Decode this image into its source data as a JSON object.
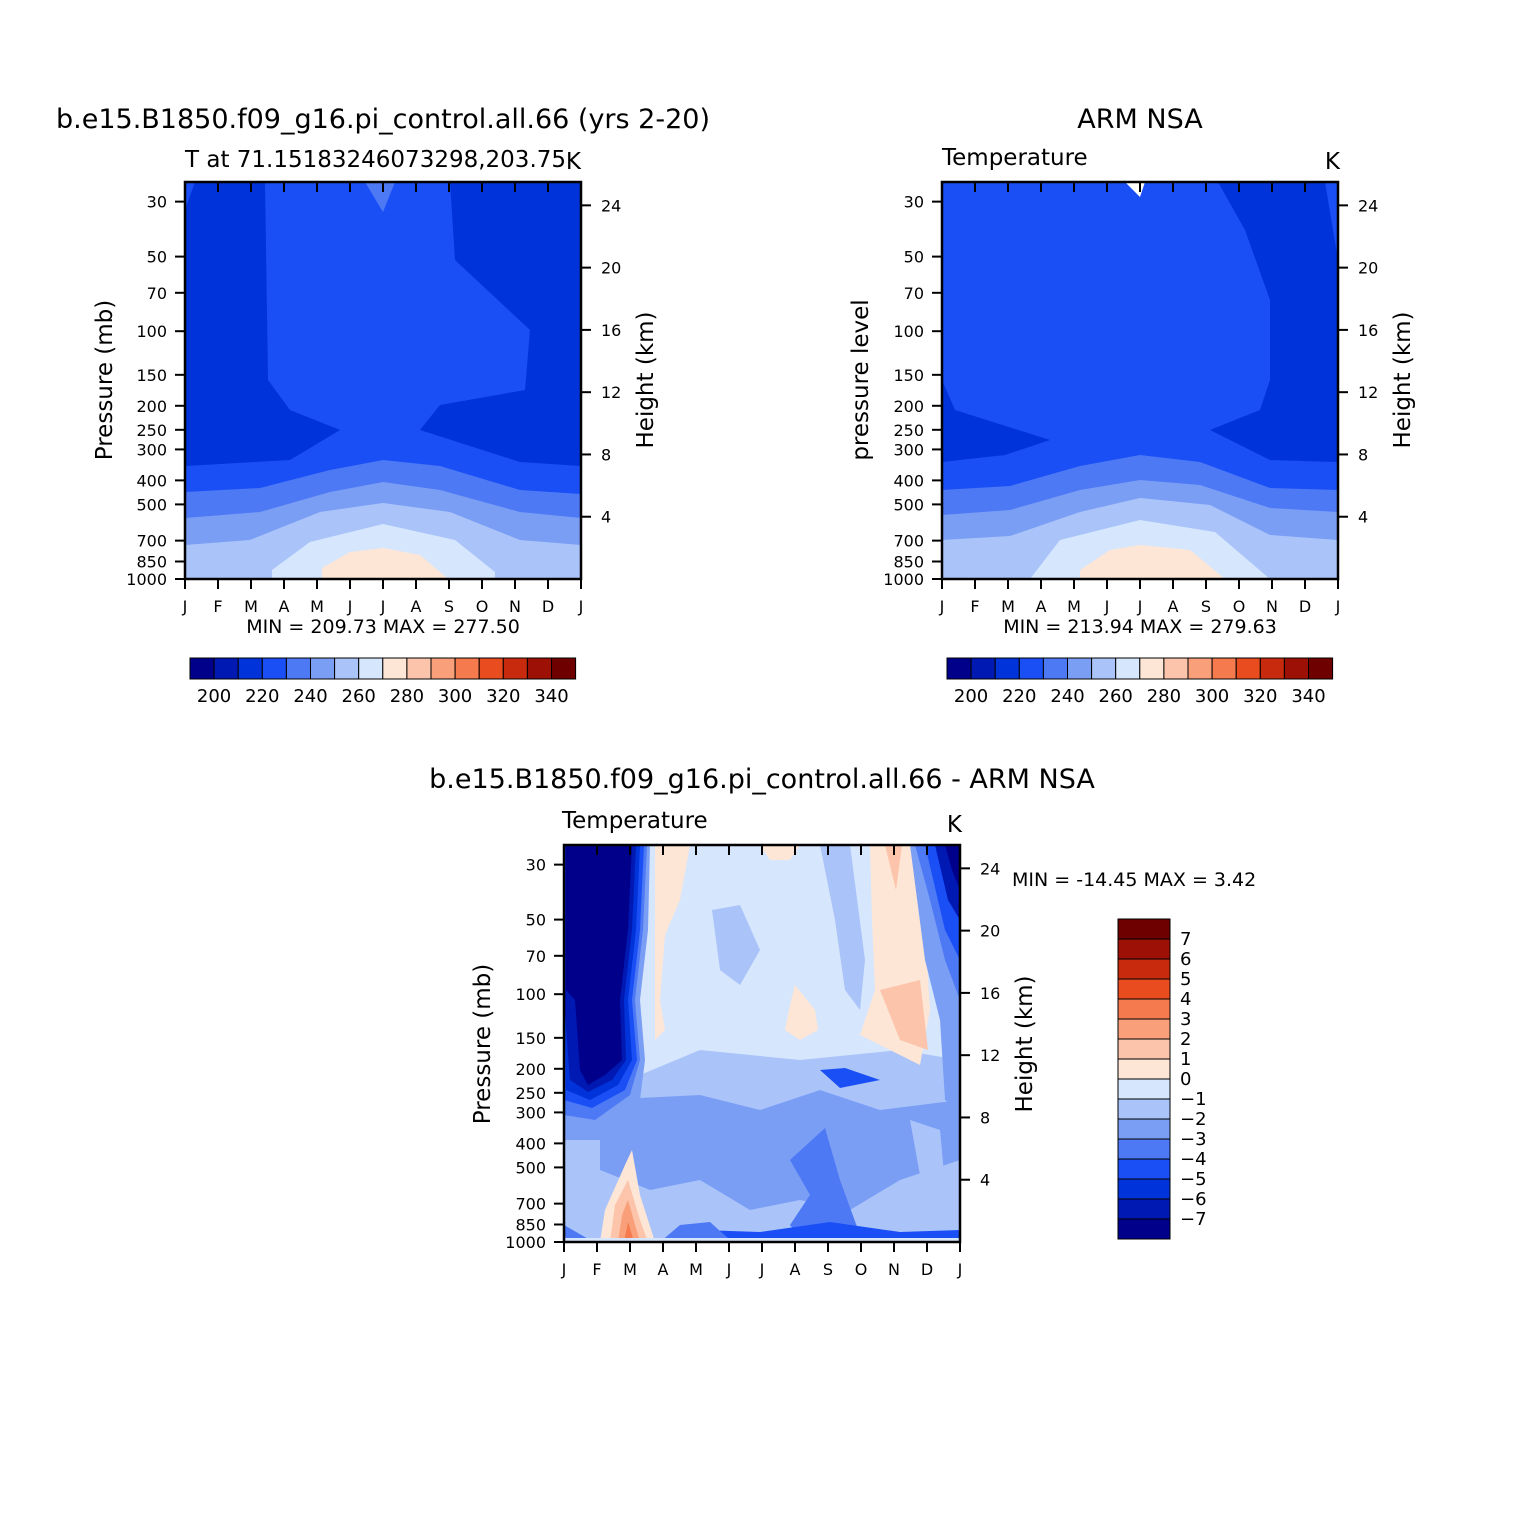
{
  "chart_data": [
    {
      "type": "heatmap",
      "title": "b.e15.B1850.f09_g16.pi_control.all.66 (yrs 2-20)",
      "subtitle_left": "T at 71.15183246073298,203.75",
      "units": "K",
      "ylabel": "Pressure (mb)",
      "ylabel_right": "Height (km)",
      "x_ticks": [
        "J",
        "F",
        "M",
        "A",
        "M",
        "J",
        "J",
        "A",
        "S",
        "O",
        "N",
        "D",
        "J"
      ],
      "y_ticks": [
        "30",
        "50",
        "70",
        "100",
        "150",
        "200",
        "250",
        "300",
        "400",
        "500",
        "700",
        "850",
        "1000"
      ],
      "height_ticks": [
        "24",
        "20",
        "16",
        "12",
        "8",
        "4"
      ],
      "stats": "MIN = 209.73 MAX = 277.50",
      "colorbar_labels": [
        "200",
        "220",
        "240",
        "260",
        "280",
        "300",
        "320",
        "340"
      ]
    },
    {
      "type": "heatmap",
      "title": "ARM NSA",
      "subtitle_left": "Temperature",
      "units": "K",
      "ylabel": "pressure level",
      "ylabel_right": "Height (km)",
      "x_ticks": [
        "J",
        "F",
        "M",
        "A",
        "M",
        "J",
        "J",
        "A",
        "S",
        "O",
        "N",
        "D",
        "J"
      ],
      "y_ticks": [
        "30",
        "50",
        "70",
        "100",
        "150",
        "200",
        "250",
        "300",
        "400",
        "500",
        "700",
        "850",
        "1000"
      ],
      "height_ticks": [
        "24",
        "20",
        "16",
        "12",
        "8",
        "4"
      ],
      "stats": "MIN = 213.94 MAX = 279.63",
      "colorbar_labels": [
        "200",
        "220",
        "240",
        "260",
        "280",
        "300",
        "320",
        "340"
      ]
    },
    {
      "type": "heatmap",
      "title": "b.e15.B1850.f09_g16.pi_control.all.66 - ARM NSA",
      "subtitle_left": "Temperature",
      "units": "K",
      "ylabel": "Pressure (mb)",
      "ylabel_right": "Height (km)",
      "x_ticks": [
        "J",
        "F",
        "M",
        "A",
        "M",
        "J",
        "J",
        "A",
        "S",
        "O",
        "N",
        "D",
        "J"
      ],
      "y_ticks": [
        "30",
        "50",
        "70",
        "100",
        "150",
        "200",
        "250",
        "300",
        "400",
        "500",
        "700",
        "850",
        "1000"
      ],
      "height_ticks": [
        "24",
        "20",
        "16",
        "12",
        "8",
        "4"
      ],
      "stats": "MIN = -14.45 MAX =    3.42",
      "colorbar_labels": [
        "7",
        "6",
        "5",
        "4",
        "3",
        "2",
        "1",
        "0",
        "-1",
        "-2",
        "-3",
        "-4",
        "-5",
        "-6",
        "-7"
      ]
    }
  ],
  "abs_palette": [
    "#00008b",
    "#0019b3",
    "#0033d9",
    "#1a4ff5",
    "#4d79f5",
    "#7b9ef5",
    "#aac4fa",
    "#d6e6fd",
    "#fde6d6",
    "#fcc4aa",
    "#f9a07b",
    "#f57a4d",
    "#e84c1f",
    "#c72a0c",
    "#9c1006",
    "#6e0000"
  ],
  "diff_palette": [
    "#00008b",
    "#0019b3",
    "#0033d9",
    "#1a4ff5",
    "#4d79f5",
    "#7b9ef5",
    "#aac4fa",
    "#d6e6fd",
    "#fde6d6",
    "#fcc4aa",
    "#f9a07b",
    "#f57a4d",
    "#e84c1f",
    "#c72a0c",
    "#9c1006",
    "#6e0000"
  ]
}
